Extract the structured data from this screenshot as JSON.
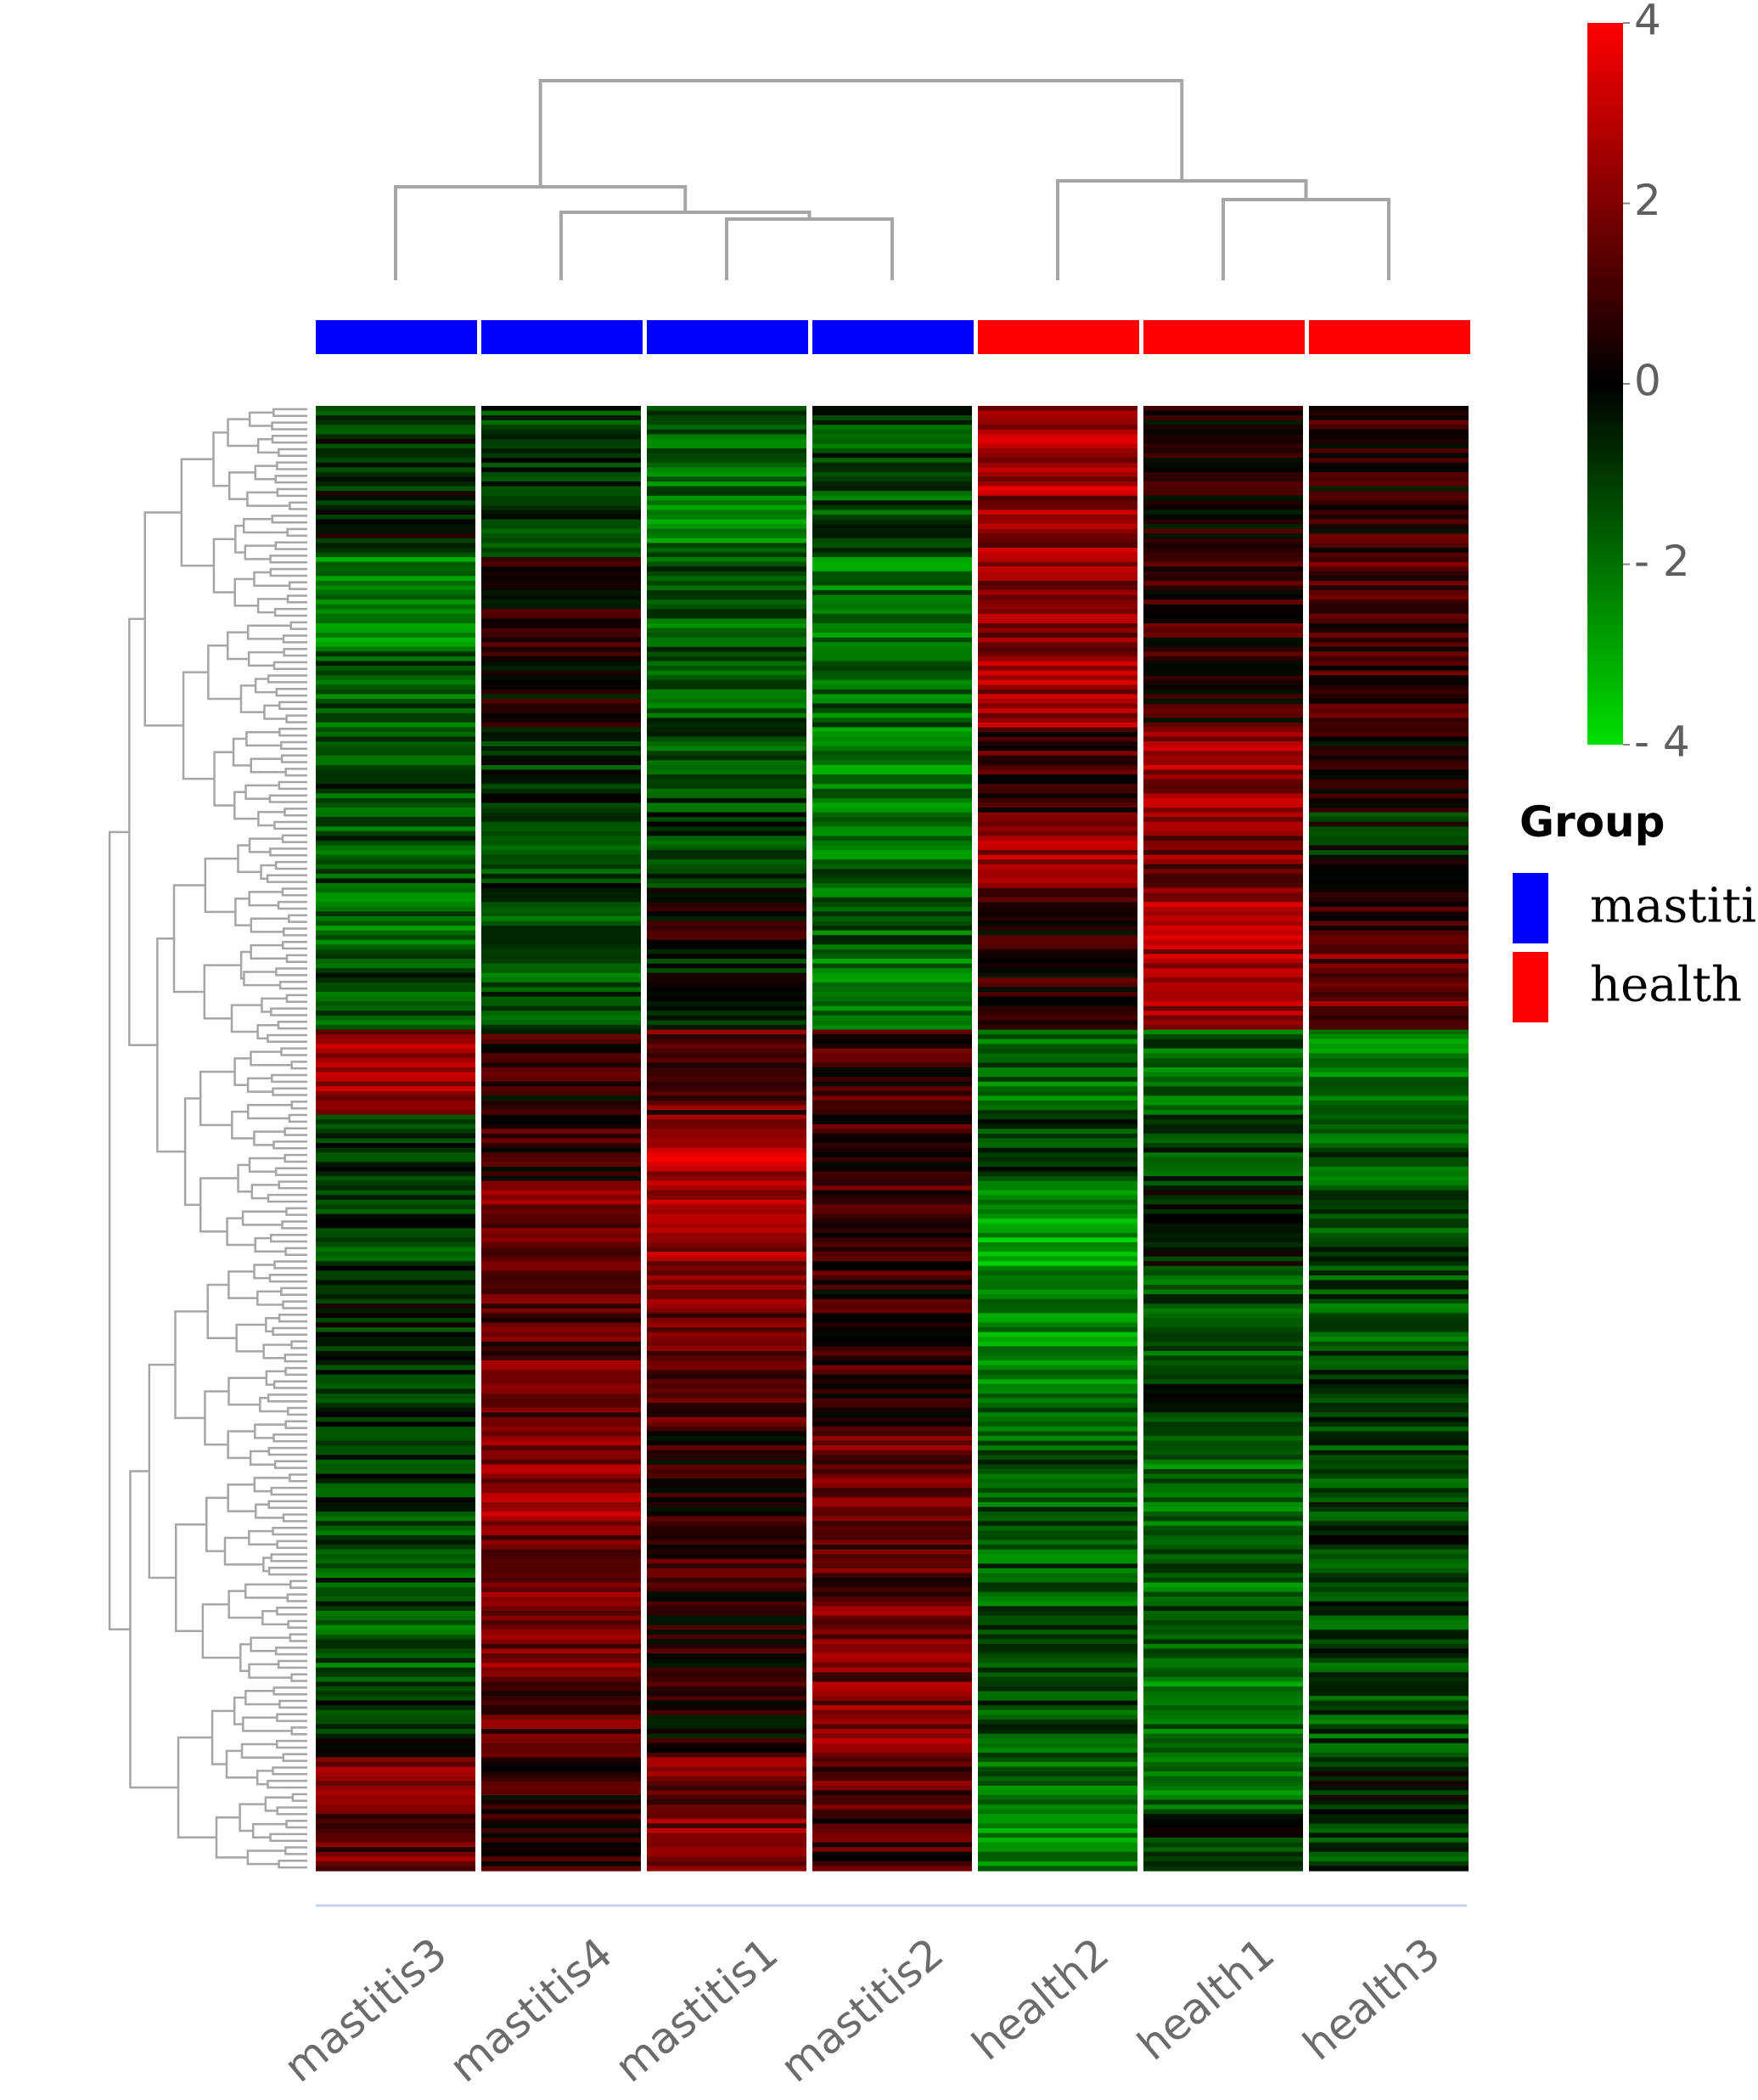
{
  "chart_data": {
    "type": "heatmap",
    "samples": [
      "mastitis3",
      "mastitis4",
      "mastitis1",
      "mastitis2",
      "health2",
      "health1",
      "health3"
    ],
    "sample_groups": [
      "mastitis",
      "mastitis",
      "mastitis",
      "mastitis",
      "health",
      "health",
      "health"
    ],
    "color_scale": {
      "min": -4,
      "max": 4,
      "low_color": "#00e000",
      "mid_color": "#000000",
      "high_color": "#ff0000",
      "ticks": [
        {
          "value": 4,
          "label": "4"
        },
        {
          "value": 2,
          "label": "2"
        },
        {
          "value": 0,
          "label": "0"
        },
        {
          "value": -2,
          "label": "- 2"
        },
        {
          "value": -4,
          "label": "- 4"
        }
      ]
    },
    "legend": {
      "title": "Group",
      "items": [
        {
          "name": "mastitis",
          "color": "#0000ff"
        },
        {
          "name": "health",
          "color": "#ff0000"
        }
      ]
    },
    "row_blocks": [
      {
        "rows": 18,
        "values": [
          -0.8,
          -1.0,
          -1.8,
          -1.2,
          2.6,
          0.2,
          0.5
        ]
      },
      {
        "rows": 14,
        "values": [
          -0.4,
          -0.9,
          -2.0,
          -1.4,
          2.3,
          0.4,
          0.8
        ]
      },
      {
        "rows": 20,
        "values": [
          -2.4,
          0.5,
          -1.6,
          -2.0,
          2.0,
          0.8,
          1.2
        ]
      },
      {
        "rows": 16,
        "values": [
          -1.6,
          0.3,
          -1.4,
          -1.8,
          2.4,
          0.5,
          1.0
        ]
      },
      {
        "rows": 18,
        "values": [
          -1.2,
          -0.8,
          -1.2,
          -2.2,
          1.0,
          2.4,
          0.1
        ]
      },
      {
        "rows": 16,
        "values": [
          -1.4,
          -1.0,
          -1.0,
          -1.8,
          2.4,
          1.8,
          -0.5
        ]
      },
      {
        "rows": 14,
        "values": [
          -1.8,
          -1.2,
          0.4,
          -1.6,
          0.6,
          2.6,
          0.6
        ]
      },
      {
        "rows": 16,
        "values": [
          -1.2,
          -1.4,
          -0.6,
          -2.0,
          0.8,
          2.4,
          1.8
        ]
      },
      {
        "rows": 18,
        "values": [
          2.4,
          0.6,
          1.4,
          0.8,
          -1.8,
          -1.8,
          -2.0
        ]
      },
      {
        "rows": 14,
        "values": [
          -0.6,
          0.8,
          2.8,
          0.8,
          -1.2,
          -1.2,
          -1.4
        ]
      },
      {
        "rows": 20,
        "values": [
          -1.0,
          1.8,
          2.2,
          1.0,
          -2.8,
          -0.6,
          -1.2
        ]
      },
      {
        "rows": 18,
        "values": [
          -0.6,
          1.2,
          1.8,
          0.6,
          -2.4,
          -1.4,
          -1.4
        ]
      },
      {
        "rows": 16,
        "values": [
          -0.8,
          1.8,
          1.2,
          0.8,
          -2.0,
          -0.8,
          -1.0
        ]
      },
      {
        "rows": 18,
        "values": [
          -1.0,
          2.2,
          0.6,
          1.8,
          -1.6,
          -2.0,
          -1.2
        ]
      },
      {
        "rows": 18,
        "values": [
          -1.2,
          1.8,
          0.8,
          1.4,
          -1.6,
          -1.8,
          -1.0
        ]
      },
      {
        "rows": 16,
        "values": [
          -1.6,
          2.0,
          0.4,
          1.8,
          -1.2,
          -1.6,
          -1.2
        ]
      },
      {
        "rows": 16,
        "values": [
          -0.6,
          1.4,
          0.4,
          2.0,
          -1.4,
          -2.0,
          -1.4
        ]
      },
      {
        "rows": 12,
        "values": [
          2.2,
          0.6,
          1.8,
          1.4,
          -2.0,
          -1.8,
          -0.4
        ]
      },
      {
        "rows": 12,
        "values": [
          1.6,
          0.4,
          2.0,
          1.0,
          -2.6,
          -0.8,
          -1.0
        ]
      }
    ]
  }
}
